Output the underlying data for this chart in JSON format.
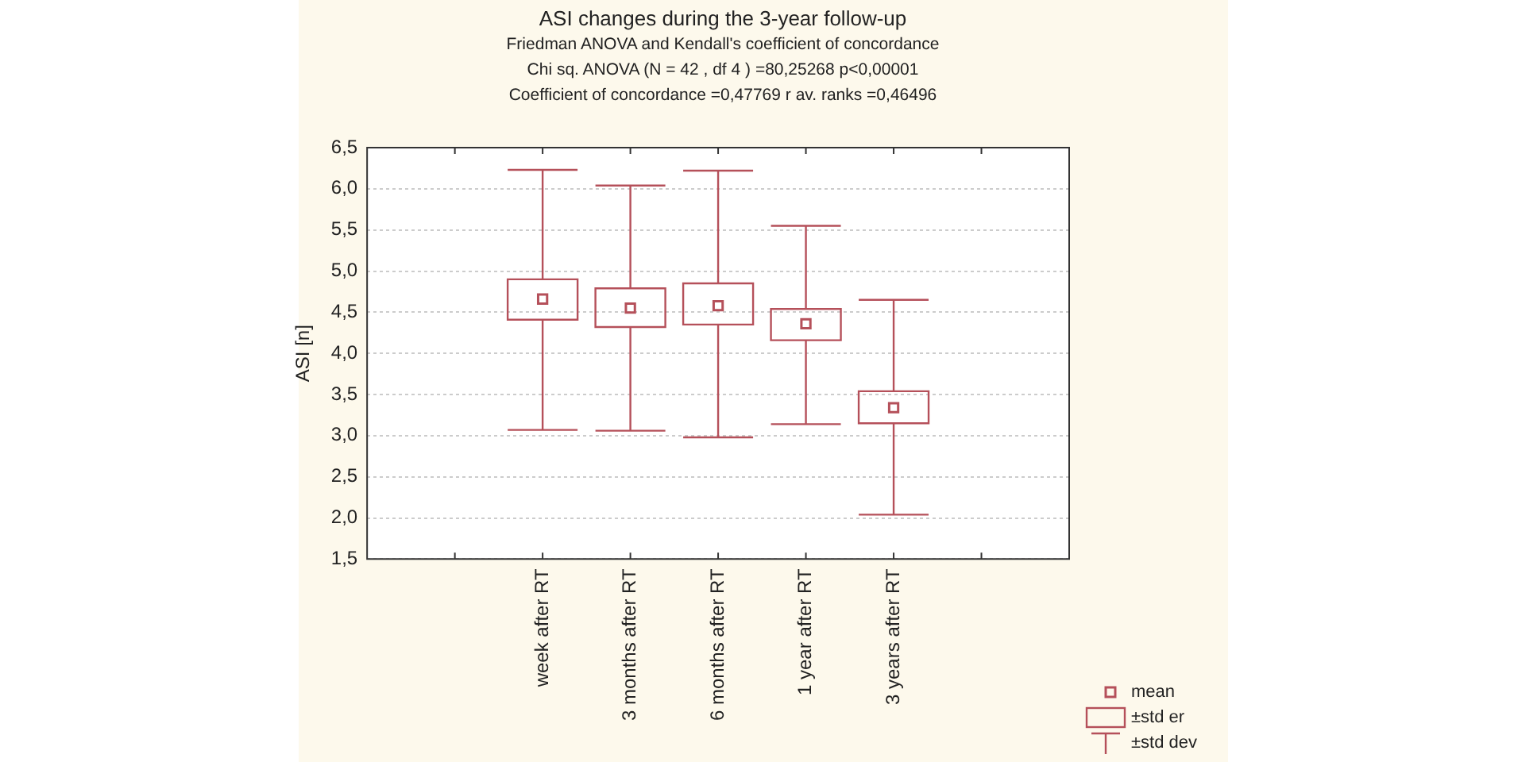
{
  "chart_data": {
    "type": "box",
    "title": "ASI changes during the 3-year follow-up",
    "subtitle": "Friedman ANOVA and Kendall's coefficient of concordance",
    "annotations": [
      "Chi sq. ANOVA (N = 42 , df 4 ) =80,25268 p<0,00001",
      "Coefficient of concordance =0,47769 r av. ranks =0,46496",
      "mean",
      "±std er",
      "±std dev"
    ],
    "ylabel": "ASI [n]",
    "categories": [
      null,
      null,
      "week after RT",
      "3 months after RT",
      "6 months after RT",
      "1 year after RT",
      "3 years after RT",
      null,
      null
    ],
    "color": "#b5505a",
    "boxes": [
      null,
      null,
      {
        "low": 3.07,
        "q1": 4.41,
        "q3": 4.9,
        "high": 6.23,
        "mean": 4.66
      },
      {
        "low": 3.06,
        "q1": 4.32,
        "q3": 4.79,
        "high": 6.04,
        "mean": 4.55
      },
      {
        "low": 2.98,
        "q1": 4.35,
        "q3": 4.85,
        "high": 6.22,
        "mean": 4.58
      },
      {
        "low": 3.14,
        "q1": 4.16,
        "q3": 4.54,
        "high": 5.55,
        "mean": 4.36
      },
      {
        "low": 2.04,
        "q1": 3.15,
        "q3": 3.54,
        "high": 4.65,
        "mean": 3.34
      },
      null,
      null
    ],
    "ylim": [
      1.5,
      6.5
    ],
    "yticks": [
      {
        "value": 1.5,
        "label": "1,5"
      },
      {
        "value": 2,
        "label": "2,0"
      },
      {
        "value": 2.5,
        "label": "2,5"
      },
      {
        "value": 3,
        "label": "3,0"
      },
      {
        "value": 3.5,
        "label": "3,5"
      },
      {
        "value": 4,
        "label": "4,0"
      },
      {
        "value": 4.5,
        "label": "4,5"
      },
      {
        "value": 5,
        "label": "5,0"
      },
      {
        "value": 5.5,
        "label": "5,5"
      },
      {
        "value": 6,
        "label": "6,0"
      },
      {
        "value": 6.5,
        "label": "6,5"
      }
    ],
    "grid": "y",
    "marker": "square"
  }
}
